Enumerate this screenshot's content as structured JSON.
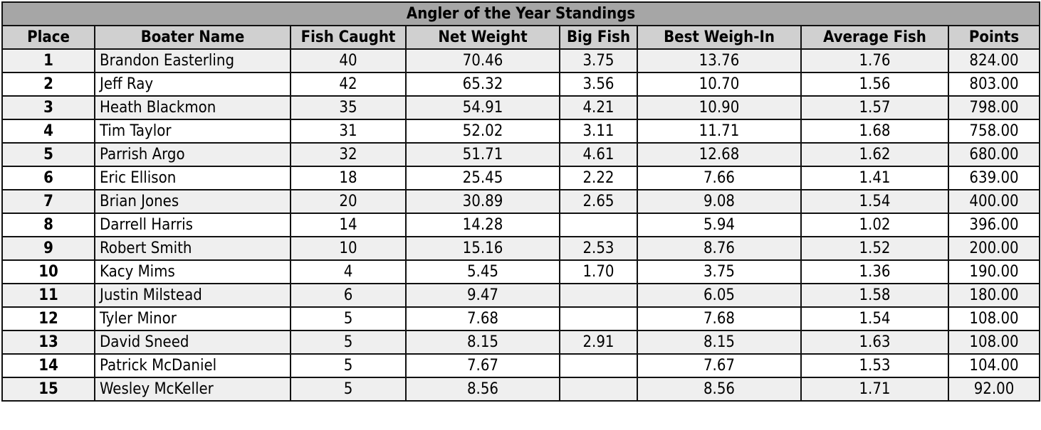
{
  "title": "Angler of the Year Standings",
  "colors": {
    "title_bg": "#a6a6a6",
    "header_bg": "#d0d0d0",
    "odd_row_bg": "#efefef",
    "even_row_bg": "#ffffff"
  },
  "columns": [
    "Place",
    "Boater Name",
    "Fish Caught",
    "Net Weight",
    "Big Fish",
    "Best Weigh-In",
    "Average Fish",
    "Points"
  ],
  "rows": [
    [
      "1",
      "Brandon Easterling",
      "40",
      "70.46",
      "3.75",
      "13.76",
      "1.76",
      "824.00"
    ],
    [
      "2",
      "Jeff Ray",
      "42",
      "65.32",
      "3.56",
      "10.70",
      "1.56",
      "803.00"
    ],
    [
      "3",
      "Heath Blackmon",
      "35",
      "54.91",
      "4.21",
      "10.90",
      "1.57",
      "798.00"
    ],
    [
      "4",
      "Tim Taylor",
      "31",
      "52.02",
      "3.11",
      "11.71",
      "1.68",
      "758.00"
    ],
    [
      "5",
      "Parrish Argo",
      "32",
      "51.71",
      "4.61",
      "12.68",
      "1.62",
      "680.00"
    ],
    [
      "6",
      "Eric Ellison",
      "18",
      "25.45",
      "2.22",
      "7.66",
      "1.41",
      "639.00"
    ],
    [
      "7",
      "Brian Jones",
      "20",
      "30.89",
      "2.65",
      "9.08",
      "1.54",
      "400.00"
    ],
    [
      "8",
      "Darrell Harris",
      "14",
      "14.28",
      "",
      "5.94",
      "1.02",
      "396.00"
    ],
    [
      "9",
      "Robert Smith",
      "10",
      "15.16",
      "2.53",
      "8.76",
      "1.52",
      "200.00"
    ],
    [
      "10",
      "Kacy Mims",
      "4",
      "5.45",
      "1.70",
      "3.75",
      "1.36",
      "190.00"
    ],
    [
      "11",
      "Justin Milstead",
      "6",
      "9.47",
      "",
      "6.05",
      "1.58",
      "180.00"
    ],
    [
      "12",
      "Tyler Minor",
      "5",
      "7.68",
      "",
      "7.68",
      "1.54",
      "108.00"
    ],
    [
      "13",
      "David Sneed",
      "5",
      "8.15",
      "2.91",
      "8.15",
      "1.63",
      "108.00"
    ],
    [
      "14",
      "Patrick McDaniel",
      "5",
      "7.67",
      "",
      "7.67",
      "1.53",
      "104.00"
    ],
    [
      "15",
      "Wesley McKeller",
      "5",
      "8.56",
      "",
      "8.56",
      "1.71",
      "92.00"
    ]
  ]
}
